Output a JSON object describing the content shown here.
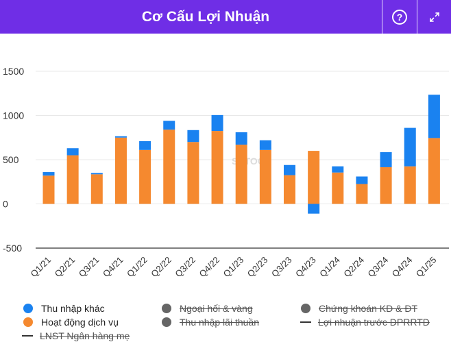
{
  "header": {
    "title": "Cơ Cấu Lợi Nhuận",
    "help_icon": "question-circle-icon",
    "expand_icon": "expand-arrows-icon"
  },
  "watermark": "SSTOCK",
  "colors": {
    "header_bg": "#6f2ee6",
    "thu_nhap_khac": "#1a82f0",
    "hoat_dong_dich_vu": "#f5892f",
    "disabled": "#666666"
  },
  "chart_data": {
    "type": "bar",
    "stacked": true,
    "title": "Cơ Cấu Lợi Nhuận",
    "categories": [
      "Q1/21",
      "Q2/21",
      "Q3/21",
      "Q4/21",
      "Q1/22",
      "Q2/22",
      "Q3/22",
      "Q4/22",
      "Q1/23",
      "Q2/23",
      "Q3/23",
      "Q4/23",
      "Q1/24",
      "Q2/24",
      "Q3/24",
      "Q4/24",
      "Q1/25"
    ],
    "series": [
      {
        "name": "Hoạt động dịch vụ",
        "color": "#f5892f",
        "values": [
          320,
          550,
          335,
          750,
          610,
          840,
          700,
          825,
          670,
          610,
          325,
          600,
          355,
          225,
          415,
          425,
          745
        ]
      },
      {
        "name": "Thu nhập khác",
        "color": "#1a82f0",
        "values": [
          40,
          80,
          15,
          15,
          100,
          100,
          135,
          180,
          140,
          110,
          115,
          -110,
          70,
          85,
          170,
          435,
          490
        ]
      }
    ],
    "yticks": [
      1500,
      1000,
      500,
      0,
      -500
    ],
    "ylim": [
      -500,
      1500
    ],
    "grid": true,
    "legend": [
      {
        "name": "Thu nhập khác",
        "marker": "dot",
        "color": "#1a82f0",
        "enabled": true
      },
      {
        "name": "Ngoại hối & vàng",
        "marker": "dot",
        "color": "#666666",
        "enabled": false
      },
      {
        "name": "Chứng khoán KD & ĐT",
        "marker": "dot",
        "color": "#666666",
        "enabled": false
      },
      {
        "name": "Hoạt động dịch vụ",
        "marker": "dot",
        "color": "#f5892f",
        "enabled": true
      },
      {
        "name": "Thu nhập lãi thuần",
        "marker": "dot",
        "color": "#666666",
        "enabled": false
      },
      {
        "name": "Lợi nhuận trước DPRRTD",
        "marker": "line",
        "color": "#333333",
        "enabled": false
      },
      {
        "name": "LNST Ngân hàng mẹ",
        "marker": "line",
        "color": "#333333",
        "enabled": false
      }
    ]
  }
}
